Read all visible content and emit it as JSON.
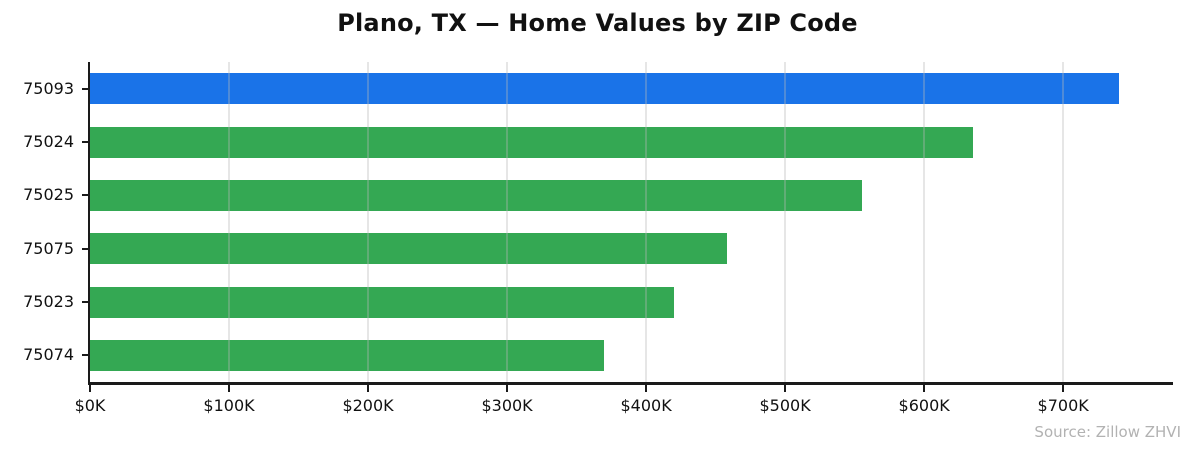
{
  "chart_data": {
    "type": "bar",
    "orientation": "horizontal",
    "title": "Plano, TX — Home Values by ZIP Code",
    "categories": [
      "75093",
      "75024",
      "75025",
      "75075",
      "75023",
      "75074"
    ],
    "values": [
      740000,
      635000,
      555000,
      458000,
      420000,
      370000
    ],
    "bar_colors": [
      "#1a73e8",
      "#34a853",
      "#34a853",
      "#34a853",
      "#34a853",
      "#34a853"
    ],
    "xlim": [
      0,
      779000
    ],
    "xticks": [
      0,
      100000,
      200000,
      300000,
      400000,
      500000,
      600000,
      700000
    ],
    "xtick_labels": [
      "$0K",
      "$100K",
      "$200K",
      "$300K",
      "$400K",
      "$500K",
      "$600K",
      "$700K"
    ],
    "grid": "vertical",
    "legend": "none",
    "source": "Source: Zillow ZHVI"
  },
  "colors": {
    "highlight_bar": "#1a73e8",
    "default_bar": "#34a853",
    "axis": "#1a1a1a",
    "gridline": "#e7e7e7",
    "text": "#111111",
    "source_text": "#b2b2b2",
    "background": "#ffffff"
  }
}
